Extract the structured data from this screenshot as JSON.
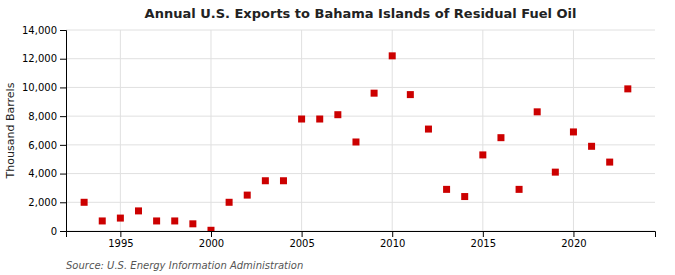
{
  "chart_data": {
    "type": "scatter",
    "title": "Annual U.S. Exports to Bahama Islands of Residual Fuel Oil",
    "ylabel": "Thousand Barrels",
    "source": "Source: U.S. Energy Information Administration",
    "color": "#cc0000",
    "marker": "square",
    "grid": true,
    "xlim": [
      1992,
      2024.5
    ],
    "xticks": [
      1995,
      2000,
      2005,
      2010,
      2015,
      2020
    ],
    "ylim": [
      0,
      14000
    ],
    "yticks": [
      0,
      {
        "value": 2000,
        "label": "2,000"
      },
      {
        "value": 4000,
        "label": "4,000"
      },
      {
        "value": 6000,
        "label": "6,000"
      },
      {
        "value": 8000,
        "label": "8,000"
      },
      {
        "value": 10000,
        "label": "10,000"
      },
      {
        "value": 12000,
        "label": "12,000"
      },
      {
        "value": 14000,
        "label": "14,000"
      }
    ],
    "x": [
      1993,
      1994,
      1995,
      1996,
      1997,
      1998,
      1999,
      2000,
      2001,
      2002,
      2003,
      2004,
      2005,
      2006,
      2007,
      2008,
      2009,
      2010,
      2011,
      2012,
      2013,
      2014,
      2015,
      2016,
      2017,
      2018,
      2019,
      2020,
      2021,
      2022,
      2023
    ],
    "values": [
      2000,
      700,
      900,
      1400,
      700,
      700,
      500,
      50,
      2000,
      2500,
      3500,
      3500,
      7800,
      7800,
      8100,
      6200,
      9600,
      12200,
      9500,
      7100,
      2900,
      2400,
      5300,
      6500,
      2900,
      8300,
      4100,
      6900,
      5900,
      4800,
      9900
    ]
  }
}
